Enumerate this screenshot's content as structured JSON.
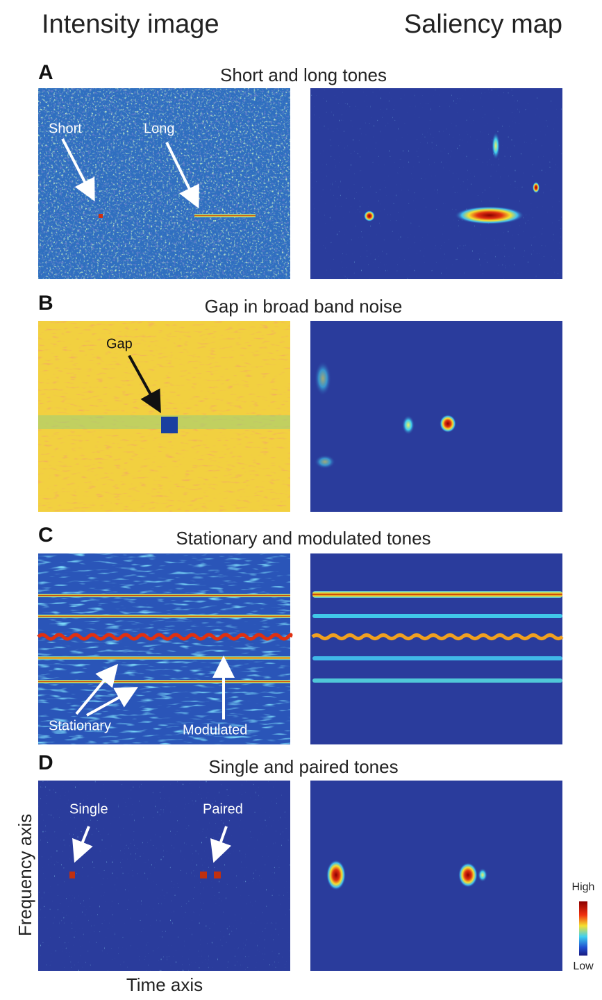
{
  "column_titles": [
    "Intensity image",
    "Saliency map"
  ],
  "panels": [
    {
      "letter": "A",
      "title": "Short and long tones",
      "annotations": [
        "Short",
        "Long"
      ]
    },
    {
      "letter": "B",
      "title": "Gap in broad band noise",
      "annotations": [
        "Gap"
      ]
    },
    {
      "letter": "C",
      "title": "Stationary and modulated tones",
      "annotations": [
        "Stationary",
        "Modulated"
      ]
    },
    {
      "letter": "D",
      "title": "Single and paired tones",
      "annotations": [
        "Single",
        "Paired"
      ]
    }
  ],
  "axes": {
    "y_label": "Frequency axis",
    "x_label": "Time axis"
  },
  "colorbar": {
    "high": "High",
    "low": "Low"
  }
}
